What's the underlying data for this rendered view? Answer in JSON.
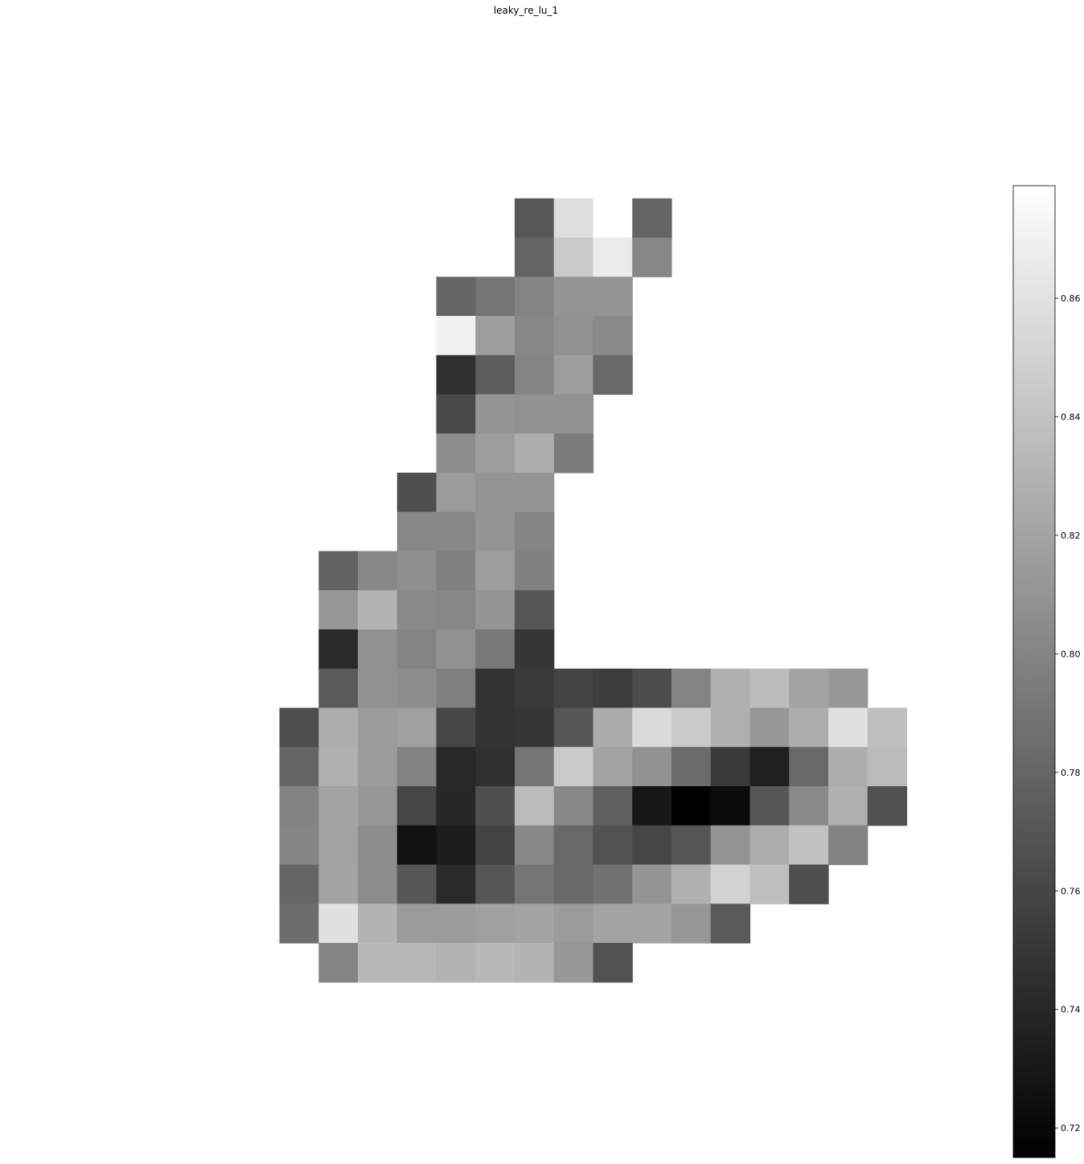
{
  "chart_data": {
    "type": "heatmap",
    "title": "leaky_re_lu_1",
    "xlabel": "",
    "ylabel": "",
    "colormap": "gray",
    "grid": false,
    "axes_visible": false,
    "vmin": 0.715,
    "vmax": 0.879,
    "colorbar": {
      "placement": "right",
      "ticks": [
        0.72,
        0.74,
        0.76,
        0.78,
        0.8,
        0.82,
        0.84,
        0.86
      ],
      "tick_labels": [
        "0.72",
        "0.74",
        "0.76",
        "0.78",
        "0.80",
        "0.82",
        "0.84",
        "0.86"
      ]
    },
    "rows": 20,
    "cols": 16,
    "row_offset": 5,
    "col_offset": 6,
    "values": [
      [
        null,
        null,
        null,
        null,
        null,
        null,
        0.771,
        0.857,
        0.879,
        0.779,
        null,
        null,
        null,
        null,
        null,
        null
      ],
      [
        null,
        null,
        null,
        null,
        null,
        null,
        0.779,
        0.845,
        0.866,
        0.802,
        null,
        null,
        null,
        null,
        null,
        null
      ],
      [
        null,
        null,
        null,
        null,
        0.78,
        0.79,
        0.8,
        0.81,
        0.81,
        null,
        null,
        null,
        null,
        null,
        null,
        null
      ],
      [
        null,
        null,
        null,
        null,
        0.87,
        0.816,
        0.802,
        0.808,
        0.804,
        null,
        null,
        null,
        null,
        null,
        null,
        null
      ],
      [
        null,
        null,
        null,
        null,
        0.745,
        0.774,
        0.8,
        0.816,
        0.782,
        null,
        null,
        null,
        null,
        null,
        null,
        null
      ],
      [
        null,
        null,
        null,
        null,
        0.762,
        0.81,
        0.808,
        0.808,
        null,
        null,
        null,
        null,
        null,
        null,
        null,
        null
      ],
      [
        null,
        null,
        null,
        null,
        0.806,
        0.816,
        0.826,
        0.795,
        null,
        null,
        null,
        null,
        null,
        null,
        null,
        null
      ],
      [
        null,
        null,
        null,
        0.765,
        0.815,
        0.81,
        0.81,
        null,
        null,
        null,
        null,
        null,
        null,
        null,
        null,
        null
      ],
      [
        null,
        null,
        null,
        0.802,
        0.802,
        0.81,
        0.8,
        null,
        null,
        null,
        null,
        null,
        null,
        null,
        null,
        null
      ],
      [
        null,
        0.778,
        0.802,
        0.807,
        0.797,
        0.816,
        0.798,
        null,
        null,
        null,
        null,
        null,
        null,
        null,
        null,
        null
      ],
      [
        null,
        0.812,
        0.83,
        0.803,
        0.802,
        0.81,
        0.77,
        null,
        null,
        null,
        null,
        null,
        null,
        null,
        null,
        null
      ],
      [
        null,
        0.742,
        0.808,
        0.8,
        0.808,
        0.792,
        0.75,
        null,
        null,
        null,
        null,
        null,
        null,
        null,
        null,
        null
      ],
      [
        null,
        0.772,
        0.808,
        0.806,
        0.797,
        0.748,
        0.752,
        0.758,
        0.754,
        0.764,
        0.8,
        0.828,
        0.836,
        0.82,
        0.812,
        null
      ],
      [
        0.765,
        0.826,
        0.815,
        0.818,
        0.76,
        0.748,
        0.75,
        0.77,
        0.825,
        0.855,
        0.845,
        0.828,
        0.812,
        0.826,
        0.86,
        0.838
      ],
      [
        0.78,
        0.828,
        0.815,
        0.799,
        0.741,
        0.746,
        0.79,
        0.845,
        0.82,
        0.808,
        0.784,
        0.752,
        0.735,
        0.782,
        0.826,
        0.835
      ],
      [
        0.799,
        0.82,
        0.812,
        0.76,
        0.74,
        0.766,
        0.835,
        0.802,
        0.776,
        0.73,
        0.715,
        0.722,
        0.77,
        0.803,
        0.828,
        0.767
      ],
      [
        0.801,
        0.819,
        0.805,
        0.725,
        0.733,
        0.758,
        0.802,
        0.782,
        0.768,
        0.76,
        0.77,
        0.81,
        0.826,
        0.84,
        0.799,
        null
      ],
      [
        0.78,
        0.82,
        0.805,
        0.77,
        0.742,
        0.77,
        0.79,
        0.783,
        0.788,
        0.81,
        0.828,
        0.85,
        0.838,
        0.765,
        null,
        null
      ],
      [
        0.785,
        0.86,
        0.83,
        0.815,
        0.815,
        0.818,
        0.82,
        0.815,
        0.82,
        0.82,
        0.812,
        0.772,
        null,
        null,
        null,
        null
      ],
      [
        null,
        0.8,
        0.834,
        0.834,
        0.83,
        0.834,
        0.83,
        0.812,
        0.768,
        null,
        null,
        null,
        null,
        null,
        null,
        null
      ]
    ]
  }
}
